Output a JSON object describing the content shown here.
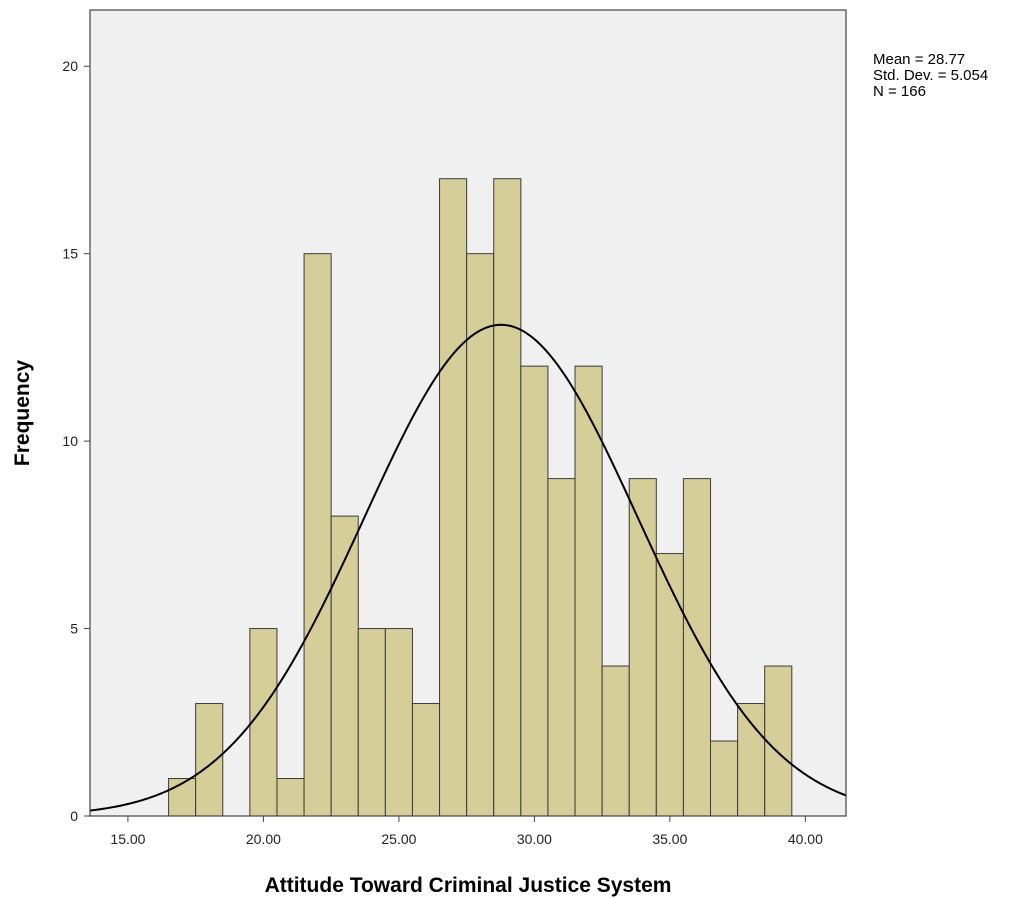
{
  "chart_data": {
    "type": "bar",
    "subtype": "histogram",
    "xlabel": "Attitude Toward Criminal Justice System",
    "ylabel": "Frequency",
    "xlim": [
      13.6,
      41.5
    ],
    "ylim": [
      0,
      21.5
    ],
    "bin_width": 1.0,
    "bins": [
      {
        "center": 17.0,
        "value": 1
      },
      {
        "center": 18.0,
        "value": 3
      },
      {
        "center": 20.0,
        "value": 5
      },
      {
        "center": 21.0,
        "value": 1
      },
      {
        "center": 22.0,
        "value": 15
      },
      {
        "center": 23.0,
        "value": 8
      },
      {
        "center": 24.0,
        "value": 5
      },
      {
        "center": 25.0,
        "value": 5
      },
      {
        "center": 26.0,
        "value": 3
      },
      {
        "center": 27.0,
        "value": 17
      },
      {
        "center": 28.0,
        "value": 15
      },
      {
        "center": 29.0,
        "value": 17
      },
      {
        "center": 30.0,
        "value": 12
      },
      {
        "center": 31.0,
        "value": 9
      },
      {
        "center": 32.0,
        "value": 12
      },
      {
        "center": 33.0,
        "value": 4
      },
      {
        "center": 34.0,
        "value": 9
      },
      {
        "center": 35.0,
        "value": 7
      },
      {
        "center": 36.0,
        "value": 9
      },
      {
        "center": 37.0,
        "value": 2
      },
      {
        "center": 38.0,
        "value": 3
      },
      {
        "center": 39.0,
        "value": 4
      }
    ],
    "x_ticks": [
      15,
      20,
      25,
      30,
      35,
      40
    ],
    "x_tick_labels": [
      "15.00",
      "20.00",
      "25.00",
      "30.00",
      "35.00",
      "40.00"
    ],
    "y_ticks": [
      0,
      5,
      10,
      15,
      20
    ],
    "y_tick_labels": [
      "0",
      "5",
      "10",
      "15",
      "20"
    ],
    "normal_curve": {
      "mean": 28.77,
      "std_dev": 5.054,
      "n": 166
    },
    "stats_lines": [
      "Mean = 28.77",
      "Std. Dev. = 5.054",
      "N = 166"
    ],
    "grid": false,
    "colors": {
      "bar_fill": "#D6CE98",
      "bar_stroke": "#3a3a3a",
      "plot_background": "#F0F0F0",
      "curve": "#000000",
      "axis": "#444444"
    }
  }
}
